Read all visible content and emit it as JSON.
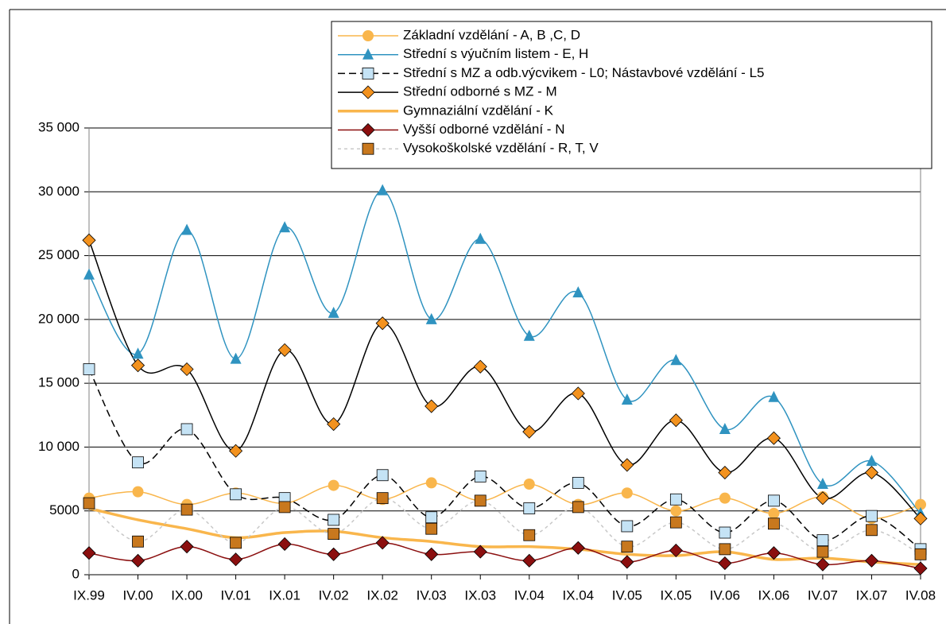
{
  "chart_data": {
    "type": "line",
    "categories": [
      "IX.99",
      "IV.00",
      "IX.00",
      "IV.01",
      "IX.01",
      "IV.02",
      "IX.02",
      "IV.03",
      "IX.03",
      "IV.04",
      "IX.04",
      "IV.05",
      "IX.05",
      "IV.06",
      "IX.06",
      "IV.07",
      "IX.07",
      "IV.08"
    ],
    "series": [
      {
        "name": "Základní vzdělání - A, B ,C, D",
        "color": "#f9b64c",
        "marker": "circle",
        "line_style": "solid",
        "values": [
          6000,
          6500,
          5500,
          6400,
          5600,
          7000,
          5900,
          7200,
          5800,
          7100,
          5500,
          6400,
          5000,
          6000,
          4800,
          6100,
          4400,
          5500
        ]
      },
      {
        "name": "Střední s výučním listem - E, H",
        "color": "#2f93c0",
        "marker": "triangle",
        "line_style": "solid",
        "values": [
          23500,
          17300,
          27000,
          16900,
          27200,
          20500,
          30100,
          20000,
          26300,
          18700,
          22100,
          13700,
          16800,
          11400,
          13900,
          7100,
          8900,
          4800
        ]
      },
      {
        "name": "Střední s MZ a odb.výcvikem - L0; Nástavbové vzdělání - L5",
        "color": "#c5e3f5",
        "marker": "square",
        "line_style": "dashed",
        "line_color": "#000000",
        "values": [
          16100,
          8800,
          11400,
          6300,
          6000,
          4300,
          7800,
          4500,
          7700,
          5200,
          7200,
          3800,
          5900,
          3300,
          5800,
          2700,
          4600,
          2000
        ]
      },
      {
        "name": "Střední odborné s MZ - M",
        "color": "#f3921e",
        "marker": "diamond",
        "line_style": "solid",
        "line_color": "#000000",
        "values": [
          26200,
          16400,
          16100,
          9700,
          17600,
          11800,
          19700,
          13200,
          16300,
          11200,
          14200,
          8600,
          12100,
          8000,
          10700,
          6000,
          8000,
          4400
        ]
      },
      {
        "name": "Gymnaziální vzdělání - K",
        "color": "#f9b64c",
        "marker": "none",
        "line_style": "thick",
        "values": [
          5200,
          4300,
          3600,
          2900,
          3300,
          3400,
          2900,
          2600,
          2200,
          2200,
          2000,
          1600,
          1500,
          1800,
          1200,
          1300,
          1000,
          800
        ]
      },
      {
        "name": "Vyšší odborné vzdělání - N",
        "color": "#8b0f0f",
        "marker": "diamond",
        "line_style": "solid",
        "values": [
          1700,
          1100,
          2200,
          1200,
          2400,
          1600,
          2500,
          1600,
          1800,
          1100,
          2100,
          1000,
          1900,
          900,
          1700,
          800,
          1100,
          500
        ]
      },
      {
        "name": "Vysokoškolské vzdělání - R, T, V",
        "color": "#c8781e",
        "marker": "square",
        "line_style": "dotted",
        "line_color": "#c8c8c8",
        "values": [
          5600,
          2600,
          5100,
          2500,
          5300,
          3200,
          6000,
          3600,
          5800,
          3100,
          5300,
          2200,
          4100,
          2000,
          4000,
          1800,
          3500,
          1600
        ]
      }
    ],
    "ylim": [
      0,
      35000
    ],
    "yticks": [
      0,
      5000,
      {
        "value": 10000,
        "label": "10 000"
      },
      {
        "value": 15000,
        "label": "15 000"
      },
      {
        "value": 20000,
        "label": "20 000"
      },
      {
        "value": 25000,
        "label": "25 000"
      },
      {
        "value": 30000,
        "label": "30 000"
      },
      {
        "value": 35000,
        "label": "35 000"
      }
    ],
    "grid": true,
    "legend": "top-right"
  }
}
